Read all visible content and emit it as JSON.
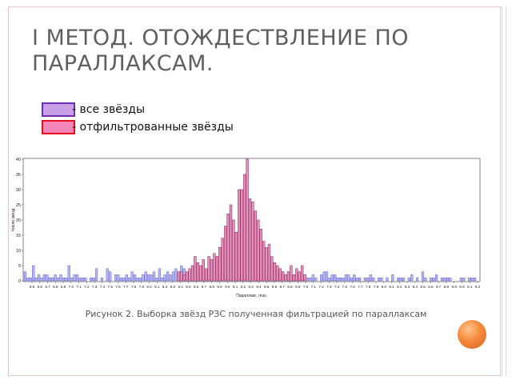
{
  "slide": {
    "title": "I МЕТОД. ОТОЖДЕСТВЛЕНИЕ ПО ПАРАЛЛАКСАМ.",
    "legend": [
      {
        "label": "- все звёзды",
        "fill": "#c8a0e8",
        "border": "#6a2fb0"
      },
      {
        "label": "- отфильтрованные звёзды",
        "fill": "#f386b6",
        "border": "#e8101e"
      }
    ],
    "caption": "Рисунок 2. Выборка звёзд РЗС полученная фильтрацией по параллаксам"
  },
  "chart_data": {
    "type": "bar",
    "xlabel": "Параллакс, mas",
    "ylabel": "Число звёзд",
    "ylim": [
      0,
      40
    ],
    "yticks": [
      0,
      5,
      10,
      15,
      20,
      25,
      30,
      35,
      40
    ],
    "xtick_labels": [
      "6.5",
      "6.6",
      "6.7",
      "6.8",
      "6.9",
      "7.0",
      "7.1",
      "7.2",
      "7.3",
      "7.4",
      "7.5",
      "7.6",
      "7.7",
      "7.8",
      "7.9",
      "8.0",
      "8.1",
      "8.2",
      "8.3",
      "8.4",
      "8.5",
      "8.6",
      "8.7",
      "8.8",
      "8.9",
      "9.0",
      "9.1",
      "9.2",
      "9.3",
      "9.4",
      "9.5",
      "9.6",
      "9.7",
      "9.8",
      "9.9",
      "7.0",
      "7.1",
      "7.2",
      "7.3",
      "7.4",
      "7.5",
      "7.6",
      "7.7",
      "7.8",
      "7.9",
      "8.0",
      "8.1",
      "8.2",
      "8.3",
      "8.4",
      "8.5",
      "8.6",
      "8.7",
      "8.8",
      "8.9",
      "9.0",
      "9.1",
      "9.2"
    ],
    "colors": {
      "all_fill": "#b4b4f0",
      "all_stroke": "#5a5ad0",
      "filtered_fill": "#e890b8",
      "filtered_stroke": "#8a2050"
    },
    "grid": false,
    "series": [
      {
        "name": "все звёзды",
        "values": [
          3,
          1,
          1,
          5,
          1,
          2,
          1,
          2,
          2,
          1,
          1,
          2,
          1,
          2,
          1,
          1,
          5,
          1,
          2,
          2,
          1,
          1,
          1,
          0,
          1,
          1,
          4,
          0,
          1,
          0,
          4,
          3,
          0,
          2,
          2,
          1,
          1,
          2,
          1,
          3,
          2,
          1,
          1,
          2,
          3,
          2,
          2,
          3,
          1,
          4,
          1,
          2,
          3,
          2,
          3,
          4,
          3,
          5,
          4,
          3,
          4,
          5,
          8,
          6,
          5,
          7,
          4,
          8,
          7,
          9,
          8,
          11,
          14,
          18,
          22,
          25,
          20,
          16,
          30,
          30,
          35,
          40,
          27,
          26,
          23,
          20,
          17,
          13,
          11,
          12,
          8,
          6,
          5,
          4,
          3,
          2,
          3,
          5,
          2,
          4,
          3,
          5,
          2,
          1,
          1,
          2,
          1,
          0,
          2,
          3,
          3,
          1,
          2,
          2,
          1,
          1,
          1,
          2,
          2,
          1,
          2,
          1,
          1,
          0,
          1,
          1,
          2,
          1,
          0,
          1,
          1,
          0,
          1,
          0,
          2,
          0,
          1,
          1,
          1,
          0,
          1,
          2,
          0,
          1,
          0,
          3,
          1,
          0,
          1,
          1,
          2,
          0,
          1,
          1,
          1,
          1,
          0,
          0,
          0,
          1,
          1,
          0,
          1,
          1,
          1,
          0
        ]
      },
      {
        "name": "отфильтрованные звёзды",
        "values": [
          0,
          0,
          0,
          0,
          0,
          0,
          0,
          0,
          0,
          0,
          0,
          0,
          0,
          0,
          0,
          0,
          0,
          0,
          0,
          0,
          0,
          0,
          0,
          0,
          0,
          0,
          0,
          0,
          0,
          0,
          0,
          0,
          0,
          0,
          0,
          0,
          0,
          0,
          0,
          0,
          0,
          0,
          0,
          0,
          0,
          0,
          0,
          0,
          0,
          0,
          0,
          0,
          0,
          0,
          0,
          0,
          3,
          3,
          2,
          3,
          4,
          5,
          8,
          6,
          5,
          7,
          4,
          8,
          7,
          9,
          8,
          11,
          14,
          18,
          22,
          25,
          20,
          16,
          30,
          30,
          35,
          40,
          27,
          26,
          23,
          20,
          17,
          13,
          11,
          12,
          8,
          6,
          5,
          4,
          3,
          2,
          3,
          5,
          2,
          4,
          3,
          5,
          2,
          0,
          0,
          0,
          0,
          0,
          0,
          0,
          0,
          0,
          0,
          0,
          0,
          0,
          0,
          0,
          0,
          0,
          0,
          0,
          0,
          0,
          0,
          0,
          0,
          0,
          0,
          0,
          0,
          0,
          0,
          0,
          0,
          0,
          0,
          0,
          0,
          0,
          0,
          0,
          0,
          0,
          0,
          0,
          0,
          0,
          0,
          0,
          0,
          0,
          0,
          0,
          0,
          0,
          0,
          0,
          0,
          0,
          0,
          0,
          0,
          0,
          0,
          0
        ]
      }
    ]
  }
}
